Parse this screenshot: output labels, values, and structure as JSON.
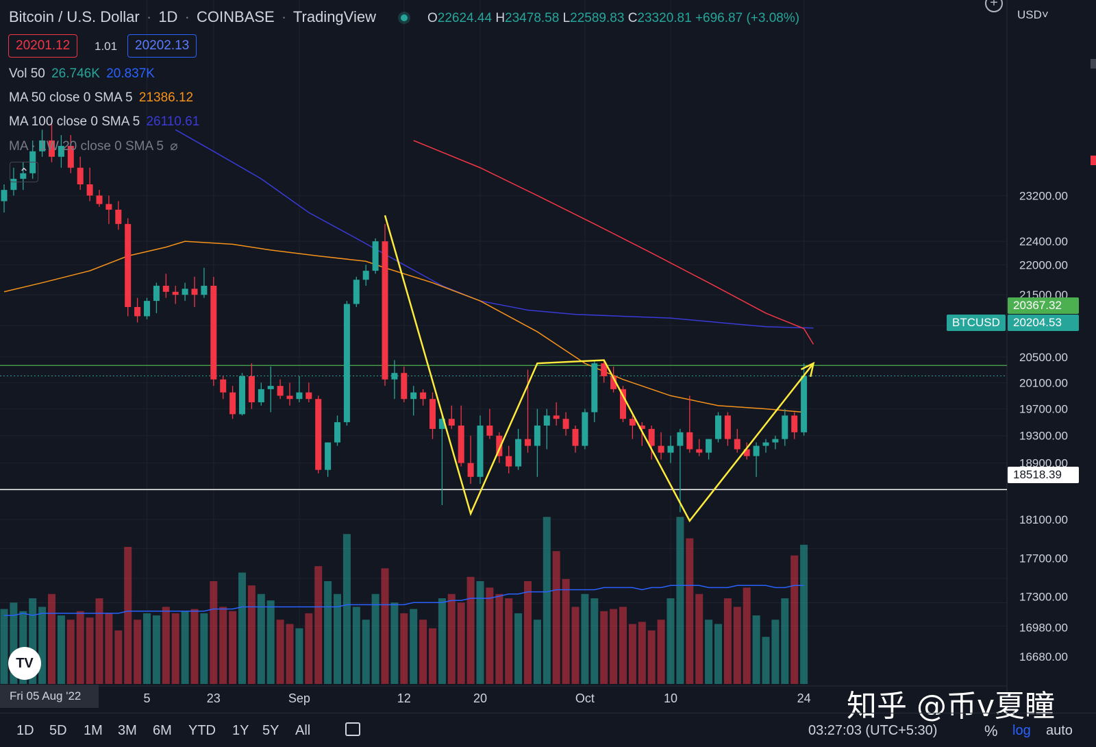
{
  "header": {
    "symbol": "Bitcoin / U.S. Dollar",
    "interval": "1D",
    "exchange": "COINBASE",
    "source": "TradingView",
    "ohlc": {
      "o_label": "O",
      "o": "22624.44",
      "h_label": "H",
      "h": "23478.58",
      "l_label": "L",
      "l": "22589.83",
      "c_label": "C",
      "c": "23320.81",
      "change": "+696.87 (+3.08%)"
    },
    "sell": "20201.12",
    "spread": "1.01",
    "buy": "20202.13",
    "currency": "USD˅"
  },
  "indicators": [
    {
      "label": "Vol 50",
      "values": [
        "26.746K",
        "20.837K"
      ],
      "colors": [
        "#26a69a",
        "#2962ff"
      ]
    },
    {
      "label": "MA 50 close 0 SMA 5",
      "values": [
        "21386.12"
      ],
      "colors": [
        "#f7931a"
      ]
    },
    {
      "label": "MA 100 close 0 SMA 5",
      "values": [
        "26110.61"
      ],
      "colors": [
        "#3a3ad8"
      ]
    },
    {
      "label": "MA · 1W 20 close 0 SMA 5",
      "values": [
        "⌀"
      ],
      "colors": [
        "#787b86"
      ]
    }
  ],
  "price_labels": {
    "green_line": "20367.32",
    "symbol_tag": "BTCUSD",
    "last_price": "20204.53",
    "white_line": "18518.39"
  },
  "date_tooltip": "Fri 05 Aug '22",
  "bottom_bar": {
    "ranges": [
      "1D",
      "5D",
      "1M",
      "3M",
      "6M",
      "YTD",
      "1Y",
      "5Y",
      "All"
    ],
    "clock": "03:27:03 (UTC+5:30)",
    "percent": "%",
    "log": "log",
    "auto": "auto"
  },
  "watermark": "知乎 @币v夏瞳",
  "logo": "TV",
  "chart_data": {
    "type": "candlestick",
    "scale": "log",
    "colors": {
      "up": "#26a69a",
      "down": "#f23645",
      "ma50": "#f7931a",
      "ma100": "#3a3ad8",
      "ma_red": "#f23645",
      "pattern": "#ffeb3b",
      "hline_green": "#4caf50",
      "hline_white": "#ffffff"
    },
    "y_ticks": [
      "23200.00",
      "22400.00",
      "22000.00",
      "21500.00",
      "21000.00",
      "20500.00",
      "20100.00",
      "19700.00",
      "19300.00",
      "18900.00",
      "18100.00",
      "17700.00",
      "17300.00",
      "16980.00",
      "16680.00"
    ],
    "y_tick_values": [
      23200,
      22400,
      22000,
      21500,
      21000,
      20500,
      20100,
      19700,
      19300,
      18900,
      18100,
      17700,
      17300,
      16980,
      16680
    ],
    "x_labels": [
      {
        "label": "5",
        "index": 15
      },
      {
        "label": "23",
        "index": 22
      },
      {
        "label": "Sep",
        "index": 31
      },
      {
        "label": "12",
        "index": 42
      },
      {
        "label": "20",
        "index": 50
      },
      {
        "label": "Oct",
        "index": 61
      },
      {
        "label": "10",
        "index": 70
      },
      {
        "label": "24",
        "index": 84
      }
    ],
    "candles": [
      [
        23100,
        23400,
        22900,
        23300
      ],
      [
        23300,
        23700,
        23200,
        23500
      ],
      [
        23500,
        23800,
        23300,
        23600
      ],
      [
        23600,
        24200,
        23500,
        24000
      ],
      [
        24000,
        24400,
        23900,
        24200
      ],
      [
        24200,
        24500,
        23800,
        23900
      ],
      [
        23900,
        24300,
        23700,
        24100
      ],
      [
        24100,
        24300,
        23600,
        23700
      ],
      [
        23700,
        23900,
        23300,
        23400
      ],
      [
        23400,
        23700,
        23100,
        23200
      ],
      [
        23200,
        23300,
        23000,
        23050
      ],
      [
        23050,
        23200,
        22700,
        22950
      ],
      [
        22950,
        23100,
        22600,
        22700
      ],
      [
        22700,
        22800,
        21150,
        21300
      ],
      [
        21300,
        21450,
        21050,
        21150
      ],
      [
        21150,
        21450,
        21100,
        21400
      ],
      [
        21400,
        21700,
        21200,
        21650
      ],
      [
        21650,
        21850,
        21450,
        21550
      ],
      [
        21550,
        21650,
        21350,
        21500
      ],
      [
        21500,
        21700,
        21400,
        21600
      ],
      [
        21600,
        21800,
        21300,
        21500
      ],
      [
        21500,
        21950,
        21450,
        21650
      ],
      [
        21650,
        21800,
        20050,
        20150
      ],
      [
        20150,
        20200,
        19850,
        19950
      ],
      [
        19950,
        20050,
        19550,
        19620
      ],
      [
        19620,
        20250,
        19600,
        20200
      ],
      [
        20200,
        20400,
        19700,
        19800
      ],
      [
        19800,
        20100,
        19750,
        20000
      ],
      [
        20000,
        20350,
        19650,
        20050
      ],
      [
        20050,
        20150,
        19850,
        19900
      ],
      [
        19900,
        20100,
        19750,
        19850
      ],
      [
        19850,
        20200,
        19800,
        19950
      ],
      [
        19950,
        20100,
        19800,
        19850
      ],
      [
        19850,
        19900,
        18750,
        18800
      ],
      [
        18800,
        19200,
        18700,
        19200
      ],
      [
        19200,
        19600,
        19150,
        19500
      ],
      [
        19500,
        21400,
        19450,
        21350
      ],
      [
        21350,
        21800,
        21300,
        21750
      ],
      [
        21750,
        22000,
        21650,
        21900
      ],
      [
        21900,
        22450,
        21850,
        22400
      ],
      [
        22400,
        22700,
        20050,
        20150
      ],
      [
        20150,
        20450,
        19850,
        20250
      ],
      [
        20250,
        20350,
        19800,
        19850
      ],
      [
        19850,
        20050,
        19600,
        19950
      ],
      [
        19950,
        20000,
        19750,
        19850
      ],
      [
        19850,
        19950,
        19250,
        19400
      ],
      [
        19400,
        19600,
        18300,
        19550
      ],
      [
        19550,
        19750,
        19400,
        19450
      ],
      [
        19450,
        19750,
        18850,
        18900
      ],
      [
        18900,
        19300,
        18600,
        18700
      ],
      [
        18700,
        19600,
        18600,
        19450
      ],
      [
        19450,
        19700,
        19250,
        19300
      ],
      [
        19300,
        19350,
        18900,
        19000
      ],
      [
        19000,
        19150,
        18750,
        18850
      ],
      [
        18850,
        19400,
        18800,
        19250
      ],
      [
        19250,
        20300,
        19050,
        19150
      ],
      [
        19150,
        19700,
        18700,
        19450
      ],
      [
        19450,
        19700,
        19100,
        19600
      ],
      [
        19600,
        19800,
        19450,
        19550
      ],
      [
        19550,
        19650,
        19300,
        19400
      ],
      [
        19400,
        19450,
        19050,
        19150
      ],
      [
        19150,
        19700,
        19100,
        19650
      ],
      [
        19650,
        20450,
        19500,
        20400
      ],
      [
        20400,
        20450,
        20100,
        20200
      ],
      [
        20200,
        20350,
        19950,
        20000
      ],
      [
        20000,
        20050,
        19500,
        19550
      ],
      [
        19550,
        19600,
        19250,
        19450
      ],
      [
        19450,
        19500,
        19150,
        19400
      ],
      [
        19400,
        19450,
        18950,
        19150
      ],
      [
        19150,
        19350,
        18950,
        19050
      ],
      [
        19050,
        19300,
        18900,
        19150
      ],
      [
        19150,
        19400,
        18200,
        19350
      ],
      [
        19350,
        19900,
        19050,
        19100
      ],
      [
        19100,
        19250,
        19000,
        19050
      ],
      [
        19050,
        19250,
        18950,
        19250
      ],
      [
        19250,
        19650,
        19200,
        19600
      ],
      [
        19600,
        19650,
        19150,
        19250
      ],
      [
        19250,
        19400,
        19050,
        19100
      ],
      [
        19100,
        19200,
        18950,
        19000
      ],
      [
        19000,
        19200,
        18700,
        19150
      ],
      [
        19150,
        19250,
        19050,
        19200
      ],
      [
        19200,
        19300,
        19100,
        19250
      ],
      [
        19250,
        19700,
        19150,
        19600
      ],
      [
        19600,
        19650,
        19250,
        19350
      ],
      [
        19350,
        20400,
        19300,
        20204.53
      ]
    ],
    "volume": [
      35,
      38,
      34,
      40,
      36,
      42,
      32,
      30,
      34,
      31,
      40,
      33,
      25,
      64,
      30,
      33,
      32,
      36,
      33,
      34,
      35,
      33,
      48,
      36,
      34,
      52,
      46,
      42,
      39,
      30,
      28,
      26,
      33,
      55,
      48,
      42,
      70,
      36,
      30,
      42,
      54,
      38,
      33,
      35,
      30,
      26,
      40,
      42,
      38,
      50,
      48,
      45,
      42,
      40,
      33,
      48,
      30,
      78,
      62,
      49,
      36,
      42,
      40,
      34,
      35,
      36,
      28,
      29,
      25,
      30,
      40,
      78,
      68,
      42,
      30,
      28,
      40,
      36,
      45,
      32,
      22,
      30,
      40,
      60,
      65
    ],
    "volume_ma": [
      32,
      32,
      33,
      32,
      33,
      33,
      33,
      33,
      33,
      33,
      33,
      33,
      33,
      34,
      34,
      34,
      34,
      34,
      34,
      34,
      34,
      34,
      35,
      35,
      35,
      36,
      36,
      36,
      36,
      36,
      36,
      36,
      36,
      36,
      36,
      36,
      37,
      37,
      37,
      37,
      37,
      37,
      37,
      38,
      38,
      38,
      38,
      39,
      39,
      40,
      40,
      40,
      41,
      42,
      42,
      43,
      43,
      43,
      44,
      44,
      44,
      44,
      44,
      45,
      45,
      45,
      45,
      44,
      45,
      45,
      46,
      46,
      46,
      46,
      45,
      45,
      45,
      46,
      46,
      46,
      46,
      45,
      45,
      46,
      46
    ],
    "ma50": [
      [
        0,
        21550
      ],
      [
        4,
        21700
      ],
      [
        9,
        21900
      ],
      [
        13,
        22150
      ],
      [
        17,
        22300
      ],
      [
        19,
        22400
      ],
      [
        24,
        22350
      ],
      [
        28,
        22250
      ],
      [
        33,
        22150
      ],
      [
        38,
        22060
      ],
      [
        40,
        21950
      ],
      [
        45,
        21700
      ],
      [
        50,
        21400
      ],
      [
        56,
        20900
      ],
      [
        61,
        20400
      ],
      [
        65,
        20150
      ],
      [
        70,
        19900
      ],
      [
        75,
        19750
      ],
      [
        80,
        19700
      ],
      [
        84,
        19650
      ]
    ],
    "ma100": [
      [
        18,
        24400
      ],
      [
        22,
        24000
      ],
      [
        27,
        23500
      ],
      [
        32,
        22900
      ],
      [
        37,
        22450
      ],
      [
        42,
        22000
      ],
      [
        46,
        21650
      ],
      [
        50,
        21400
      ],
      [
        55,
        21250
      ],
      [
        60,
        21180
      ],
      [
        65,
        21150
      ],
      [
        70,
        21120
      ],
      [
        75,
        21050
      ],
      [
        80,
        20980
      ],
      [
        85,
        20960
      ]
    ],
    "ma_red": [
      [
        43,
        24200
      ],
      [
        50,
        23700
      ],
      [
        56,
        23200
      ],
      [
        62,
        22700
      ],
      [
        68,
        22200
      ],
      [
        74,
        21700
      ],
      [
        80,
        21200
      ],
      [
        84,
        20950
      ],
      [
        85,
        20700
      ]
    ],
    "pattern_lines": [
      [
        40,
        22850
      ],
      [
        49,
        18180
      ],
      [
        56,
        20400
      ],
      [
        63,
        20450
      ],
      [
        72,
        18080
      ],
      [
        85,
        20400
      ]
    ],
    "hlines": [
      {
        "value": 20367.32,
        "color": "#4caf50"
      },
      {
        "value": 18518.39,
        "color": "#ffffff"
      }
    ],
    "last_price_line": 20204.53
  }
}
